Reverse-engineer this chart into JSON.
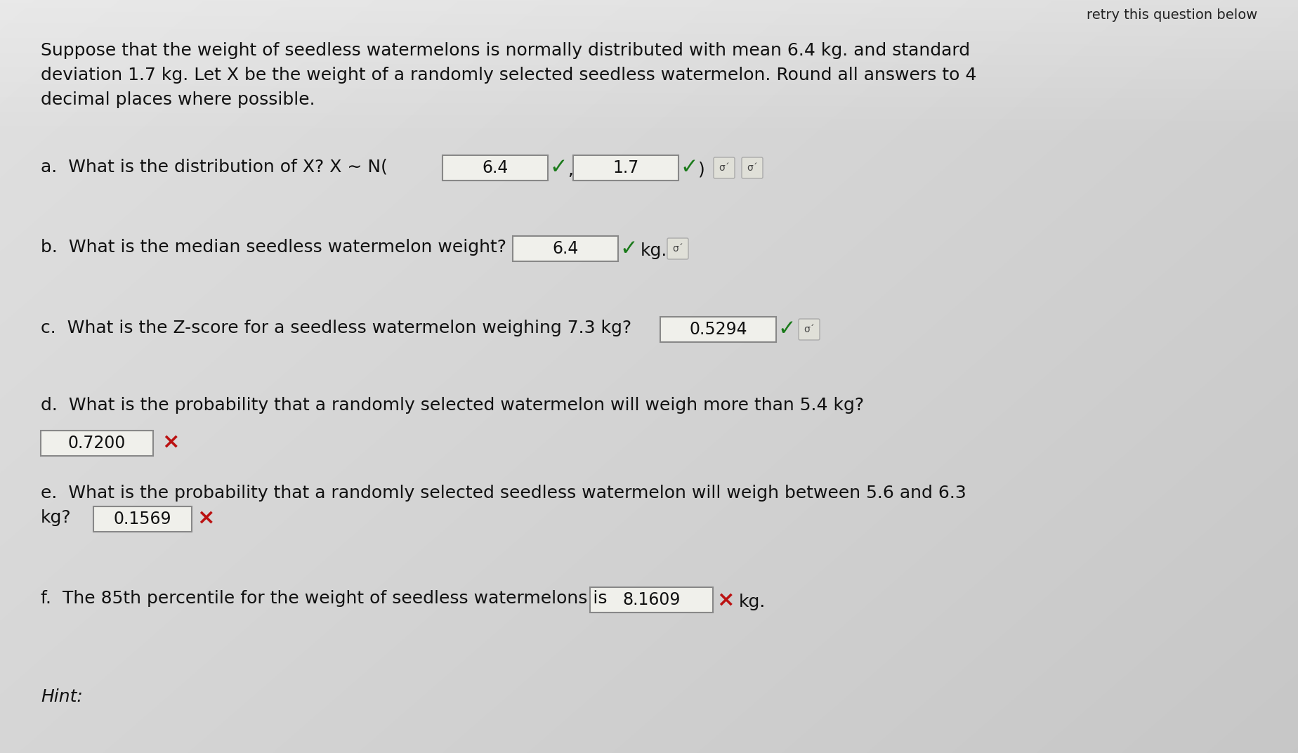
{
  "bg_color_top": "#d8d8d0",
  "bg_color_bottom": "#b0b0a8",
  "top_text": "retry this question below",
  "intro_line1": "Suppose that the weight of seedless watermelons is normally distributed with mean 6.4 kg. and standard",
  "intro_line2": "deviation 1.7 kg. Let X be the weight of a randomly selected seedless watermelon. Round all answers to 4",
  "intro_line3": "decimal places where possible.",
  "q_a_prefix": "a.  What is the distribution of X? X ∼ N(",
  "q_a_val1": "6.4",
  "q_a_val2": "1.7",
  "q_b_prefix": "b.  What is the median seedless watermelon weight?",
  "q_b_val": "6.4",
  "q_b_suffix": "kg.",
  "q_c_prefix": "c.  What is the Z-score for a seedless watermelon weighing 7.3 kg?",
  "q_c_val": "0.5294",
  "q_d_line1": "d.  What is the probability that a randomly selected watermelon will weigh more than 5.4 kg?",
  "q_d_val": "0.7200",
  "q_e_line1": "e.  What is the probability that a randomly selected seedless watermelon will weigh between 5.6 and 6.3",
  "q_e_line2": "kg?",
  "q_e_val": "0.1569",
  "q_f_prefix": "f.  The 85th percentile for the weight of seedless watermelons is",
  "q_f_val": "8.1609",
  "q_f_suffix": "kg.",
  "hint_text": "Hint:",
  "text_color": "#111111",
  "box_bg": "#f0f0eb",
  "box_border": "#888888",
  "check_color": "#1a7a1a",
  "cross_color": "#bb1111",
  "circle_color": "#cccccc",
  "sigma_text_color": "#444444"
}
